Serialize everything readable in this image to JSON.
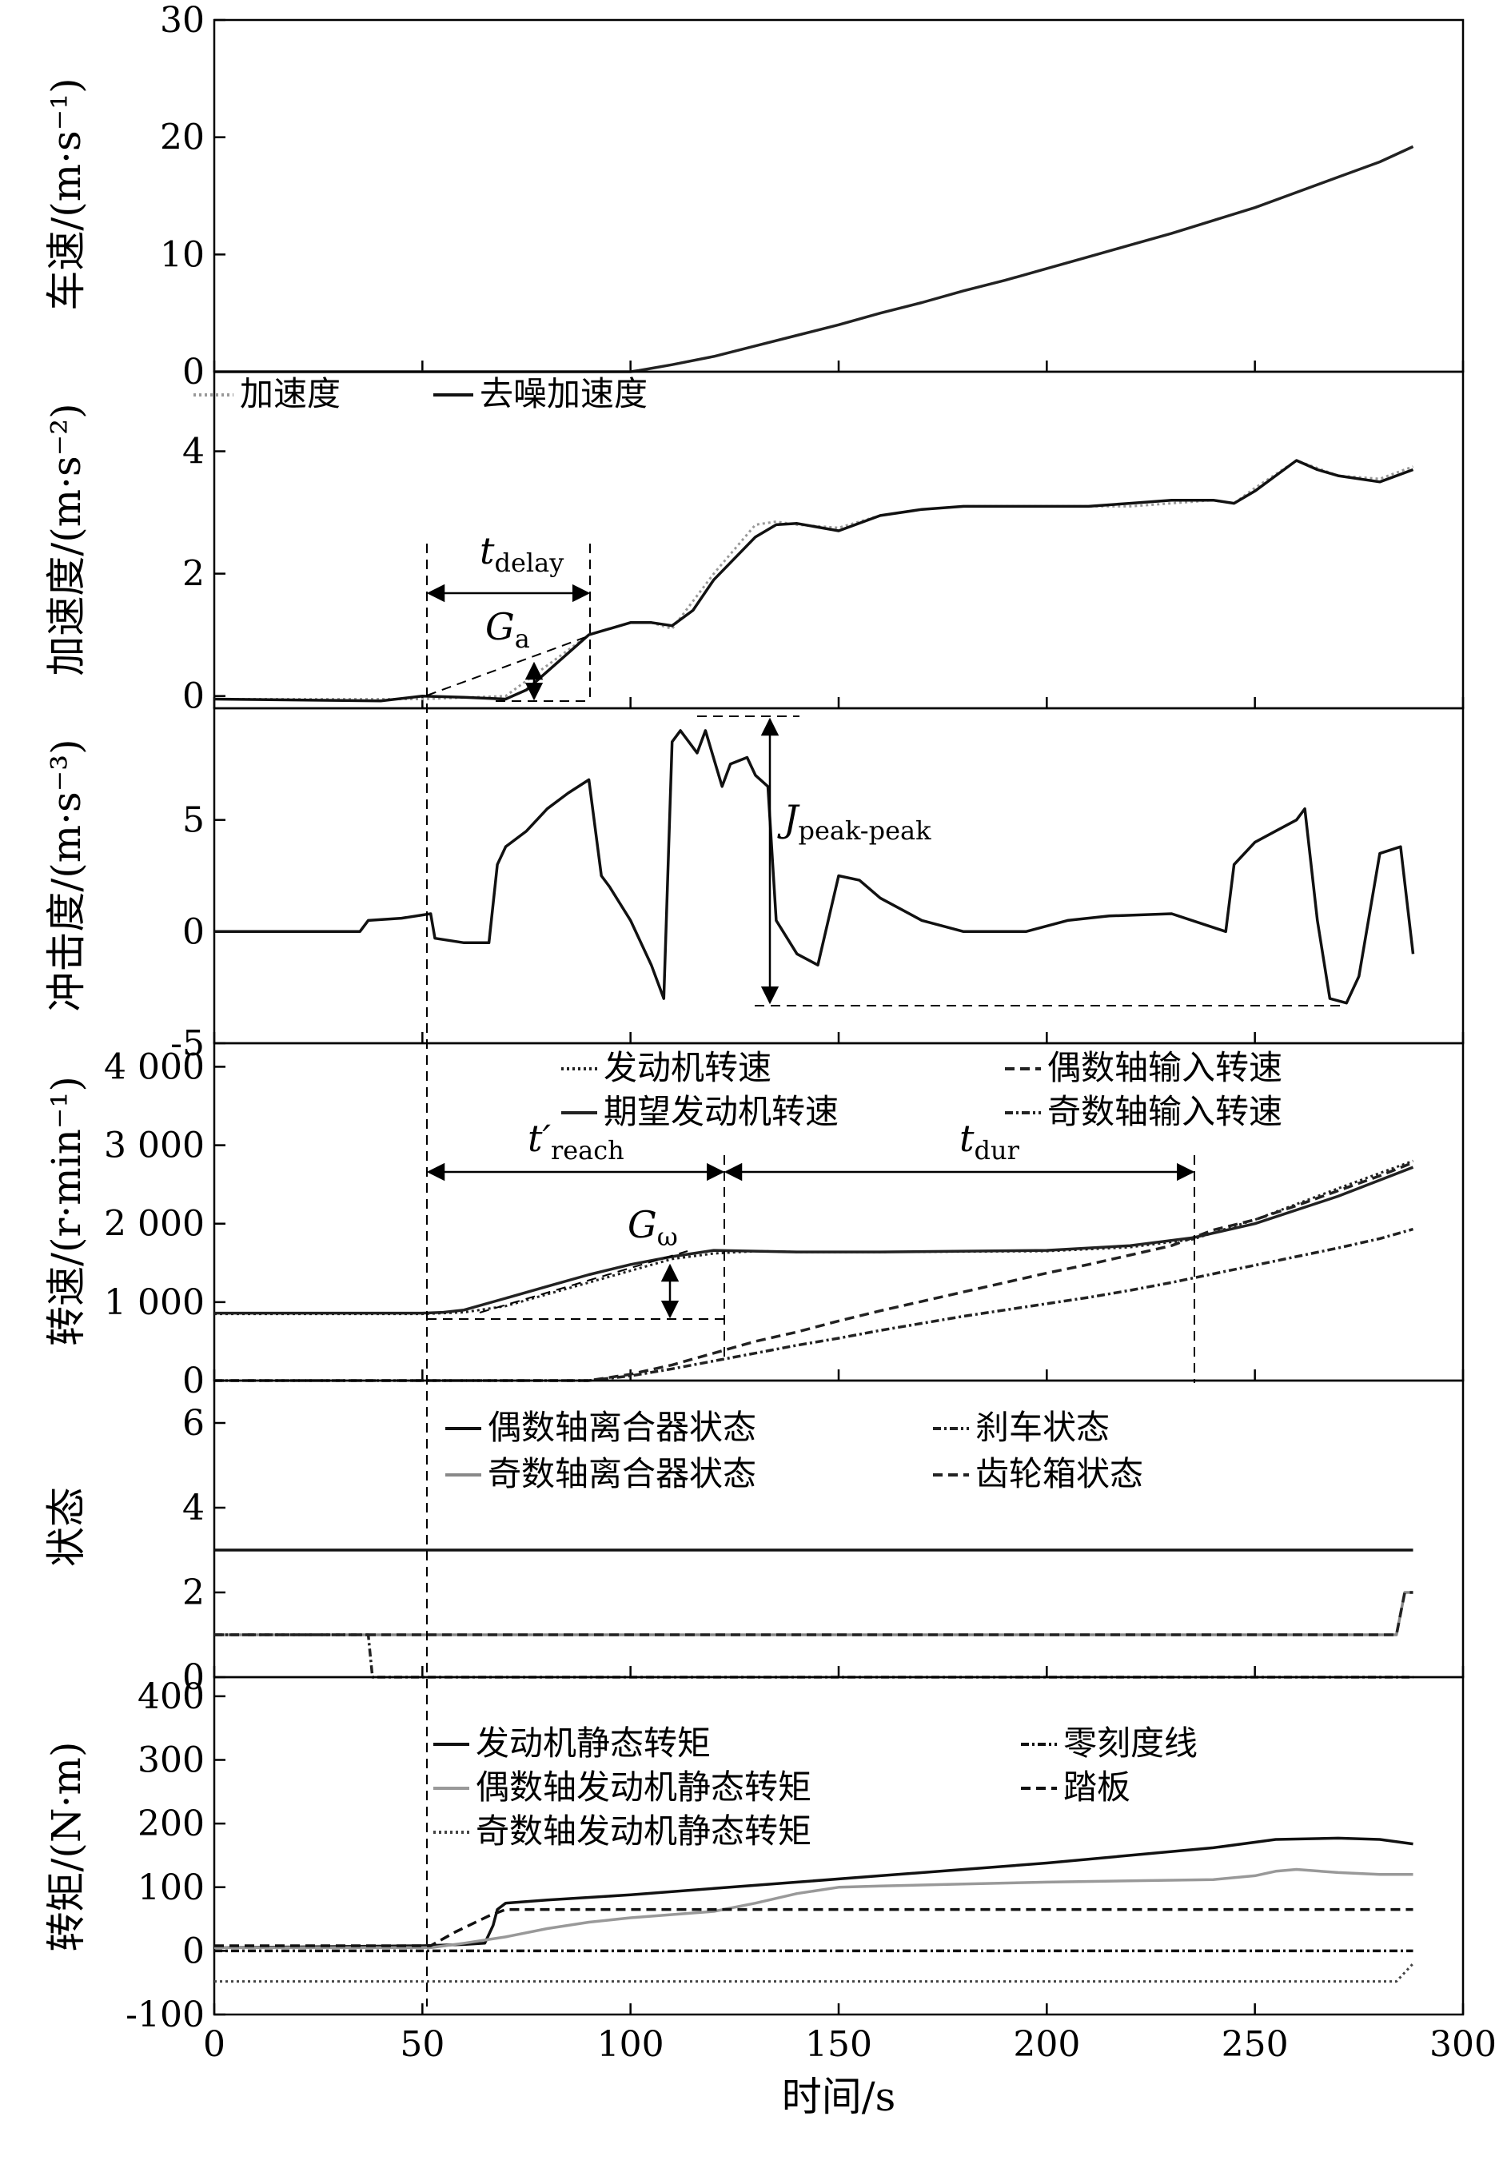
{
  "chart_data": [
    {
      "type": "line",
      "ylabel": "车速/(m·s⁻¹)",
      "ylim": [
        0,
        30
      ],
      "yticks": [
        "0",
        "10",
        "20",
        "30"
      ],
      "series": [
        {
          "color": "#222222",
          "style": "solid",
          "x": [
            0,
            100,
            102,
            110,
            120,
            130,
            140,
            150,
            160,
            170,
            180,
            190,
            200,
            210,
            220,
            230,
            240,
            250,
            260,
            270,
            280,
            288
          ],
          "y": [
            0,
            0,
            0.1,
            0.6,
            1.3,
            2.2,
            3.1,
            4.0,
            5.0,
            5.9,
            6.9,
            7.8,
            8.8,
            9.8,
            10.8,
            11.8,
            12.9,
            14.0,
            15.3,
            16.6,
            17.9,
            19.2
          ]
        }
      ]
    },
    {
      "type": "line",
      "ylabel": "加速度/(m·s⁻²)",
      "ylim": [
        -0.2,
        5.3
      ],
      "yticks": [
        "0",
        "2",
        "4"
      ],
      "legend": [
        "加速度",
        "去噪加速度"
      ],
      "series": [
        {
          "name": "加速度",
          "color": "#999999",
          "style": "dotted",
          "x": [
            0,
            50,
            70,
            80,
            90,
            100,
            105,
            110,
            120,
            130,
            135,
            140,
            150,
            160,
            170,
            180,
            190,
            200,
            210,
            220,
            230,
            240,
            245,
            250,
            260,
            270,
            280,
            288
          ],
          "y": [
            -0.05,
            -0.05,
            0.0,
            0.5,
            1.0,
            1.2,
            1.2,
            1.1,
            2.0,
            2.8,
            2.85,
            2.8,
            2.75,
            2.95,
            3.05,
            3.1,
            3.1,
            3.1,
            3.1,
            3.1,
            3.15,
            3.2,
            3.15,
            3.4,
            3.85,
            3.6,
            3.55,
            3.75
          ]
        },
        {
          "name": "去噪加速度",
          "color": "#111111",
          "style": "solid",
          "x": [
            0,
            40,
            50,
            60,
            70,
            75,
            80,
            90,
            100,
            105,
            110,
            115,
            120,
            130,
            135,
            140,
            150,
            160,
            170,
            180,
            190,
            200,
            210,
            220,
            230,
            240,
            245,
            250,
            255,
            260,
            265,
            270,
            280,
            288
          ],
          "y": [
            -0.05,
            -0.08,
            0.0,
            -0.02,
            -0.05,
            0.1,
            0.4,
            1.0,
            1.2,
            1.2,
            1.15,
            1.4,
            1.9,
            2.6,
            2.8,
            2.82,
            2.7,
            2.95,
            3.05,
            3.1,
            3.1,
            3.1,
            3.1,
            3.15,
            3.2,
            3.2,
            3.15,
            3.35,
            3.6,
            3.85,
            3.7,
            3.6,
            3.5,
            3.7
          ]
        }
      ],
      "annotations": [
        "t",
        "delay",
        "G",
        "a"
      ]
    },
    {
      "type": "line",
      "ylabel": "冲击度/(m·s⁻³)",
      "ylim": [
        -5,
        10
      ],
      "yticks": [
        "-5",
        "0",
        "5"
      ],
      "series": [
        {
          "color": "#111111",
          "style": "solid",
          "x": [
            0,
            35,
            37,
            45,
            52,
            53,
            60,
            66,
            68,
            70,
            75,
            80,
            85,
            90,
            93,
            95,
            100,
            105,
            108,
            110,
            112,
            116,
            118,
            122,
            124,
            128,
            130,
            133,
            135,
            140,
            145,
            150,
            155,
            160,
            170,
            180,
            195,
            205,
            215,
            230,
            243,
            245,
            250,
            255,
            260,
            262,
            265,
            268,
            272,
            275,
            280,
            285,
            288
          ],
          "y": [
            0,
            0,
            0.5,
            0.6,
            0.8,
            -0.3,
            -0.5,
            -0.5,
            3.0,
            3.8,
            4.5,
            5.5,
            6.2,
            6.8,
            2.5,
            2.0,
            0.5,
            -1.5,
            -3.0,
            8.5,
            9.0,
            8.0,
            9.0,
            6.5,
            7.5,
            7.8,
            7.0,
            6.5,
            0.5,
            -1.0,
            -1.5,
            2.5,
            2.3,
            1.5,
            0.5,
            0.0,
            0.0,
            0.5,
            0.7,
            0.8,
            0.0,
            3.0,
            4.0,
            4.5,
            5.0,
            5.5,
            0.5,
            -3.0,
            -3.2,
            -2.0,
            3.5,
            3.8,
            -1.0
          ]
        }
      ],
      "annotations": [
        "J",
        "peak-peak"
      ]
    },
    {
      "type": "line",
      "ylabel": "转速/(r·min⁻¹)",
      "ylim": [
        0,
        4300
      ],
      "yticks": [
        "0",
        "1 000",
        "2 000",
        "3 000",
        "4 000"
      ],
      "legend": [
        "发动机转速",
        "期望发动机转速",
        "偶数轴输入转速",
        "奇数轴输入转速"
      ],
      "series": [
        {
          "name": "发动机转速",
          "color": "#222222",
          "style": "dotted",
          "x": [
            0,
            50,
            60,
            70,
            80,
            90,
            100,
            110,
            120,
            130,
            140,
            160,
            180,
            200,
            220,
            235,
            250,
            270,
            288
          ],
          "y": [
            850,
            850,
            870,
            950,
            1100,
            1250,
            1400,
            1550,
            1620,
            1650,
            1640,
            1640,
            1645,
            1650,
            1700,
            1800,
            2050,
            2450,
            2800
          ]
        },
        {
          "name": "期望发动机转速",
          "color": "#222222",
          "style": "solid",
          "x": [
            0,
            50,
            55,
            60,
            70,
            80,
            90,
            100,
            110,
            115,
            120,
            130,
            140,
            160,
            180,
            200,
            220,
            235,
            250,
            270,
            288
          ],
          "y": [
            860,
            860,
            870,
            900,
            1050,
            1200,
            1350,
            1480,
            1580,
            1620,
            1660,
            1650,
            1640,
            1640,
            1650,
            1660,
            1720,
            1820,
            2000,
            2350,
            2720
          ]
        },
        {
          "name": "偶数轴输入转速",
          "color": "#222222",
          "style": "dashed",
          "x": [
            0,
            90,
            100,
            110,
            120,
            130,
            140,
            150,
            160,
            170,
            180,
            190,
            200,
            210,
            220,
            230,
            235,
            240,
            250,
            260,
            270,
            280,
            288
          ],
          "y": [
            0,
            0,
            80,
            200,
            350,
            500,
            620,
            760,
            890,
            1010,
            1130,
            1250,
            1370,
            1480,
            1600,
            1720,
            1820,
            1920,
            2050,
            2230,
            2420,
            2610,
            2780
          ]
        },
        {
          "name": "奇数轴输入转速",
          "color": "#222222",
          "style": "dashdot",
          "x": [
            0,
            90,
            100,
            110,
            120,
            130,
            140,
            150,
            160,
            170,
            180,
            190,
            200,
            210,
            220,
            230,
            240,
            250,
            260,
            270,
            280,
            288
          ],
          "y": [
            0,
            0,
            60,
            150,
            250,
            350,
            450,
            540,
            640,
            730,
            820,
            900,
            980,
            1060,
            1150,
            1250,
            1360,
            1470,
            1580,
            1690,
            1810,
            1930
          ]
        }
      ],
      "annotations": [
        "t′",
        "reach",
        "t",
        "dur",
        "G",
        "ω"
      ]
    },
    {
      "type": "line",
      "ylabel": "状态",
      "ylim": [
        0,
        7
      ],
      "yticks": [
        "0",
        "2",
        "4",
        "6"
      ],
      "legend": [
        "偶数轴离合器状态",
        "奇数轴离合器状态",
        "刹车状态",
        "齿轮箱状态"
      ],
      "series": [
        {
          "name": "偶数轴离合器状态",
          "color": "#111111",
          "style": "solid",
          "x": [
            0,
            288
          ],
          "y": [
            3,
            3
          ]
        },
        {
          "name": "奇数轴离合器状态",
          "color": "#888888",
          "style": "solid-marker",
          "x": [
            0,
            284,
            286,
            288
          ],
          "y": [
            1,
            1,
            2,
            2
          ]
        },
        {
          "name": "刹车状态",
          "color": "#222222",
          "style": "dashdot",
          "x": [
            0,
            37,
            38,
            288
          ],
          "y": [
            1,
            1,
            0,
            0
          ]
        },
        {
          "name": "齿轮箱状态",
          "color": "#222222",
          "style": "dashed",
          "x": [
            0,
            284,
            286,
            288
          ],
          "y": [
            1,
            1,
            2,
            2
          ]
        }
      ]
    },
    {
      "type": "line",
      "ylabel": "转矩/(N·m)",
      "xlabel": "时间/s",
      "xlim": [
        0,
        300
      ],
      "xticks": [
        "0",
        "50",
        "100",
        "150",
        "200",
        "250",
        "300"
      ],
      "ylim": [
        -100,
        430
      ],
      "yticks": [
        "-100",
        "0",
        "100",
        "200",
        "300",
        "400"
      ],
      "legend": [
        "发动机静态转矩",
        "偶数轴发动机静态转矩",
        "奇数轴发动机静态转矩",
        "零刻度线",
        "踏板"
      ],
      "series": [
        {
          "name": "发动机静态转矩",
          "color": "#111111",
          "style": "solid",
          "x": [
            0,
            50,
            60,
            65,
            67,
            68,
            70,
            80,
            100,
            120,
            140,
            160,
            180,
            200,
            220,
            240,
            255,
            270,
            280,
            288
          ],
          "y": [
            5,
            8,
            10,
            12,
            40,
            65,
            75,
            80,
            88,
            98,
            108,
            118,
            128,
            138,
            150,
            162,
            175,
            177,
            175,
            168
          ]
        },
        {
          "name": "偶数轴发动机静态转矩",
          "color": "#999999",
          "style": "solid",
          "x": [
            0,
            52,
            60,
            70,
            80,
            90,
            100,
            110,
            120,
            130,
            140,
            150,
            160,
            180,
            200,
            220,
            240,
            250,
            255,
            260,
            270,
            280,
            288
          ],
          "y": [
            5,
            5,
            12,
            22,
            35,
            45,
            52,
            57,
            62,
            75,
            90,
            100,
            102,
            105,
            108,
            110,
            112,
            118,
            125,
            128,
            123,
            120,
            120
          ]
        },
        {
          "name": "奇数轴发动机静态转矩",
          "color": "#444444",
          "style": "dotted",
          "x": [
            0,
            284,
            288
          ],
          "y": [
            -48,
            -48,
            -20
          ]
        },
        {
          "name": "零刻度线",
          "color": "#111111",
          "style": "dashdot",
          "x": [
            0,
            288
          ],
          "y": [
            0,
            0
          ]
        },
        {
          "name": "踏板",
          "color": "#111111",
          "style": "dashed",
          "x": [
            0,
            52,
            58,
            66,
            70,
            288
          ],
          "y": [
            8,
            8,
            30,
            55,
            65,
            65
          ]
        }
      ]
    }
  ]
}
